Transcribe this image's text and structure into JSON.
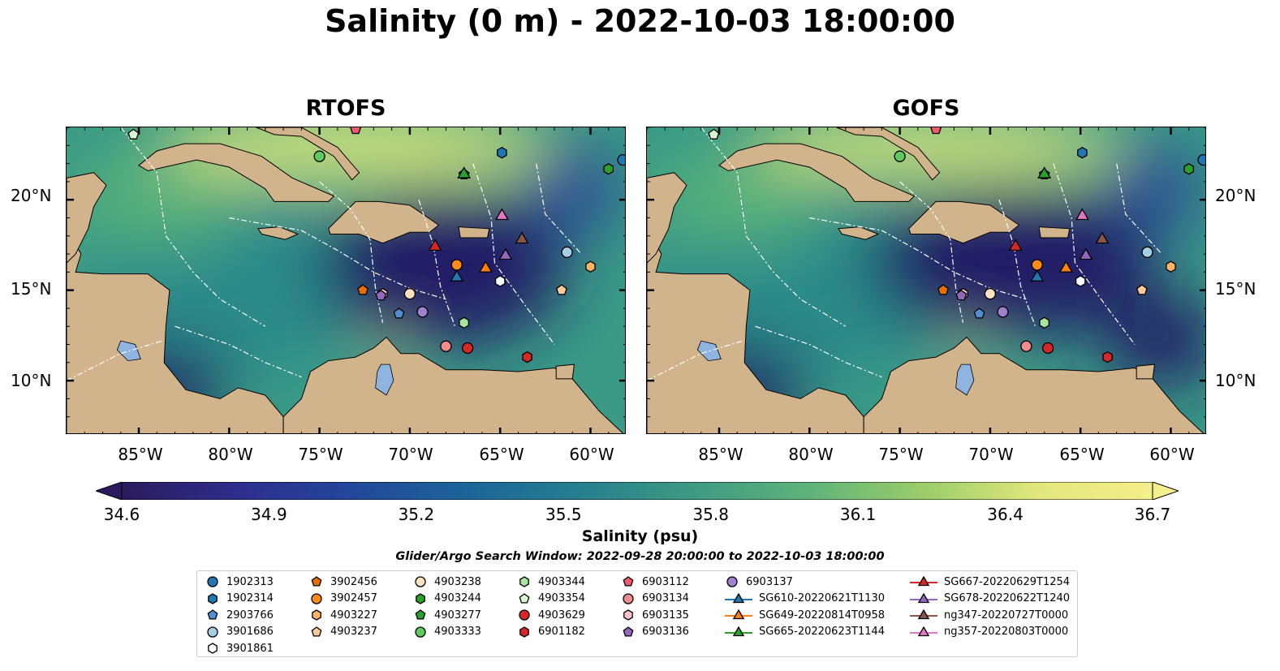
{
  "title": "Salinity (0 m) - 2022-10-03 18:00:00",
  "panels": [
    {
      "title": "RTOFS"
    },
    {
      "title": "GOFS"
    }
  ],
  "map": {
    "lon_range": [
      -89,
      -58
    ],
    "lat_range": [
      7,
      24
    ],
    "lat_ticks": [
      "20°N",
      "15°N",
      "10°N"
    ],
    "lon_ticks": [
      "85°W",
      "80°W",
      "75°W",
      "70°W",
      "65°W",
      "60°W"
    ]
  },
  "colorbar": {
    "label": "Salinity (psu)",
    "ticks": [
      "34.6",
      "34.9",
      "35.2",
      "35.5",
      "35.8",
      "36.1",
      "36.4",
      "36.7"
    ],
    "range": [
      34.6,
      36.7
    ],
    "colors": [
      "#2b1b5e",
      "#2e2d8c",
      "#22479a",
      "#1c649a",
      "#257f8f",
      "#3f9a82",
      "#5fb37a",
      "#9bcd6a",
      "#e1e77c",
      "#f5ee8c"
    ]
  },
  "search_window": "Glider/Argo Search Window: 2022-09-28 20:00:00 to 2022-10-03 18:00:00",
  "legend": [
    {
      "label": "1902313",
      "marker": "circle",
      "color": "#1f77b4"
    },
    {
      "label": "1902314",
      "marker": "hexagon",
      "color": "#1f77b4"
    },
    {
      "label": "2903766",
      "marker": "pentagon",
      "color": "#4f8fd0"
    },
    {
      "label": "3901686",
      "marker": "circle",
      "color": "#a6cee3"
    },
    {
      "label": "3901861",
      "marker": "hexagon",
      "color": "#ffffff"
    },
    {
      "label": "3902456",
      "marker": "pentagon",
      "color": "#e66f00"
    },
    {
      "label": "3902457",
      "marker": "circle",
      "color": "#ff8c1a"
    },
    {
      "label": "4903227",
      "marker": "hexagon",
      "color": "#ffb366"
    },
    {
      "label": "4903237",
      "marker": "pentagon",
      "color": "#ffcc99"
    },
    {
      "label": "4903238",
      "marker": "circle",
      "color": "#ffe0c2"
    },
    {
      "label": "4903244",
      "marker": "hexagon",
      "color": "#2ca02c"
    },
    {
      "label": "4903277",
      "marker": "pentagon",
      "color": "#2ca02c"
    },
    {
      "label": "4903333",
      "marker": "circle",
      "color": "#5ec95e"
    },
    {
      "label": "4903344",
      "marker": "hexagon",
      "color": "#a8e6a0"
    },
    {
      "label": "4903354",
      "marker": "pentagon",
      "color": "#d8f5d0"
    },
    {
      "label": "4903629",
      "marker": "circle",
      "color": "#d62728"
    },
    {
      "label": "6901182",
      "marker": "hexagon",
      "color": "#d62728"
    },
    {
      "label": "6903112",
      "marker": "pentagon",
      "color": "#f05a6e"
    },
    {
      "label": "6903134",
      "marker": "circle",
      "color": "#f08c8c"
    },
    {
      "label": "6903135",
      "marker": "hexagon",
      "color": "#ffc2c8"
    },
    {
      "label": "6903136",
      "marker": "pentagon",
      "color": "#9467bd"
    },
    {
      "label": "6903137",
      "marker": "circle",
      "color": "#9f7fd0"
    },
    {
      "label": "SG610-20220621T1130",
      "marker": "triangle",
      "color": "#1f77b4"
    },
    {
      "label": "SG649-20220814T0958",
      "marker": "triangle",
      "color": "#ff7f0e"
    },
    {
      "label": "SG665-20220623T1144",
      "marker": "triangle",
      "color": "#2ca02c"
    },
    {
      "label": "SG667-20220629T1254",
      "marker": "triangle",
      "color": "#d62728"
    },
    {
      "label": "SG678-20220622T1240",
      "marker": "triangle",
      "color": "#9467bd"
    },
    {
      "label": "ng347-20220727T0000",
      "marker": "triangle",
      "color": "#8c564b"
    },
    {
      "label": "ng357-20220803T0000",
      "marker": "triangle",
      "color": "#e377c2"
    }
  ],
  "observations": [
    {
      "id": "1902313",
      "lon": -58.2,
      "lat": 22.2
    },
    {
      "id": "1902314",
      "lon": -64.9,
      "lat": 22.6
    },
    {
      "id": "2903766",
      "lon": -70.6,
      "lat": 13.7
    },
    {
      "id": "3901686",
      "lon": -61.3,
      "lat": 17.1
    },
    {
      "id": "3901861",
      "lon": -65.0,
      "lat": 15.5
    },
    {
      "id": "3902456",
      "lon": -72.6,
      "lat": 15.0
    },
    {
      "id": "3902457",
      "lon": -67.4,
      "lat": 16.4
    },
    {
      "id": "4903227",
      "lon": -60.0,
      "lat": 16.3
    },
    {
      "id": "4903237",
      "lon": -61.6,
      "lat": 15.0
    },
    {
      "id": "4903238",
      "lon": -70.0,
      "lat": 14.8
    },
    {
      "id": "4903244",
      "lon": -59.0,
      "lat": 21.7
    },
    {
      "id": "4903277",
      "lon": -67.0,
      "lat": 21.4
    },
    {
      "id": "4903333",
      "lon": -75.0,
      "lat": 22.4
    },
    {
      "id": "4903344",
      "lon": -67.0,
      "lat": 13.2
    },
    {
      "id": "4903354",
      "lon": -85.3,
      "lat": 23.6
    },
    {
      "id": "4903629",
      "lon": -66.8,
      "lat": 11.8
    },
    {
      "id": "6901182",
      "lon": -63.5,
      "lat": 11.3
    },
    {
      "id": "6903112",
      "lon": -73.0,
      "lat": 23.9
    },
    {
      "id": "6903134",
      "lon": -68.0,
      "lat": 11.9
    },
    {
      "id": "6903135",
      "lon": -71.5,
      "lat": 14.8
    },
    {
      "id": "6903136",
      "lon": -71.6,
      "lat": 14.7
    },
    {
      "id": "6903137",
      "lon": -69.3,
      "lat": 13.8
    },
    {
      "id": "SG610-20220621T1130",
      "lon": -67.4,
      "lat": 15.7
    },
    {
      "id": "SG649-20220814T0958",
      "lon": -65.8,
      "lat": 16.2
    },
    {
      "id": "SG665-20220623T1144",
      "lon": -67.0,
      "lat": 21.4
    },
    {
      "id": "SG667-20220629T1254",
      "lon": -68.6,
      "lat": 17.4
    },
    {
      "id": "SG678-20220622T1240",
      "lon": -64.7,
      "lat": 16.9
    },
    {
      "id": "ng347-20220727T0000",
      "lon": -63.8,
      "lat": 17.8
    },
    {
      "id": "ng357-20220803T0000",
      "lon": -64.9,
      "lat": 19.1
    }
  ]
}
